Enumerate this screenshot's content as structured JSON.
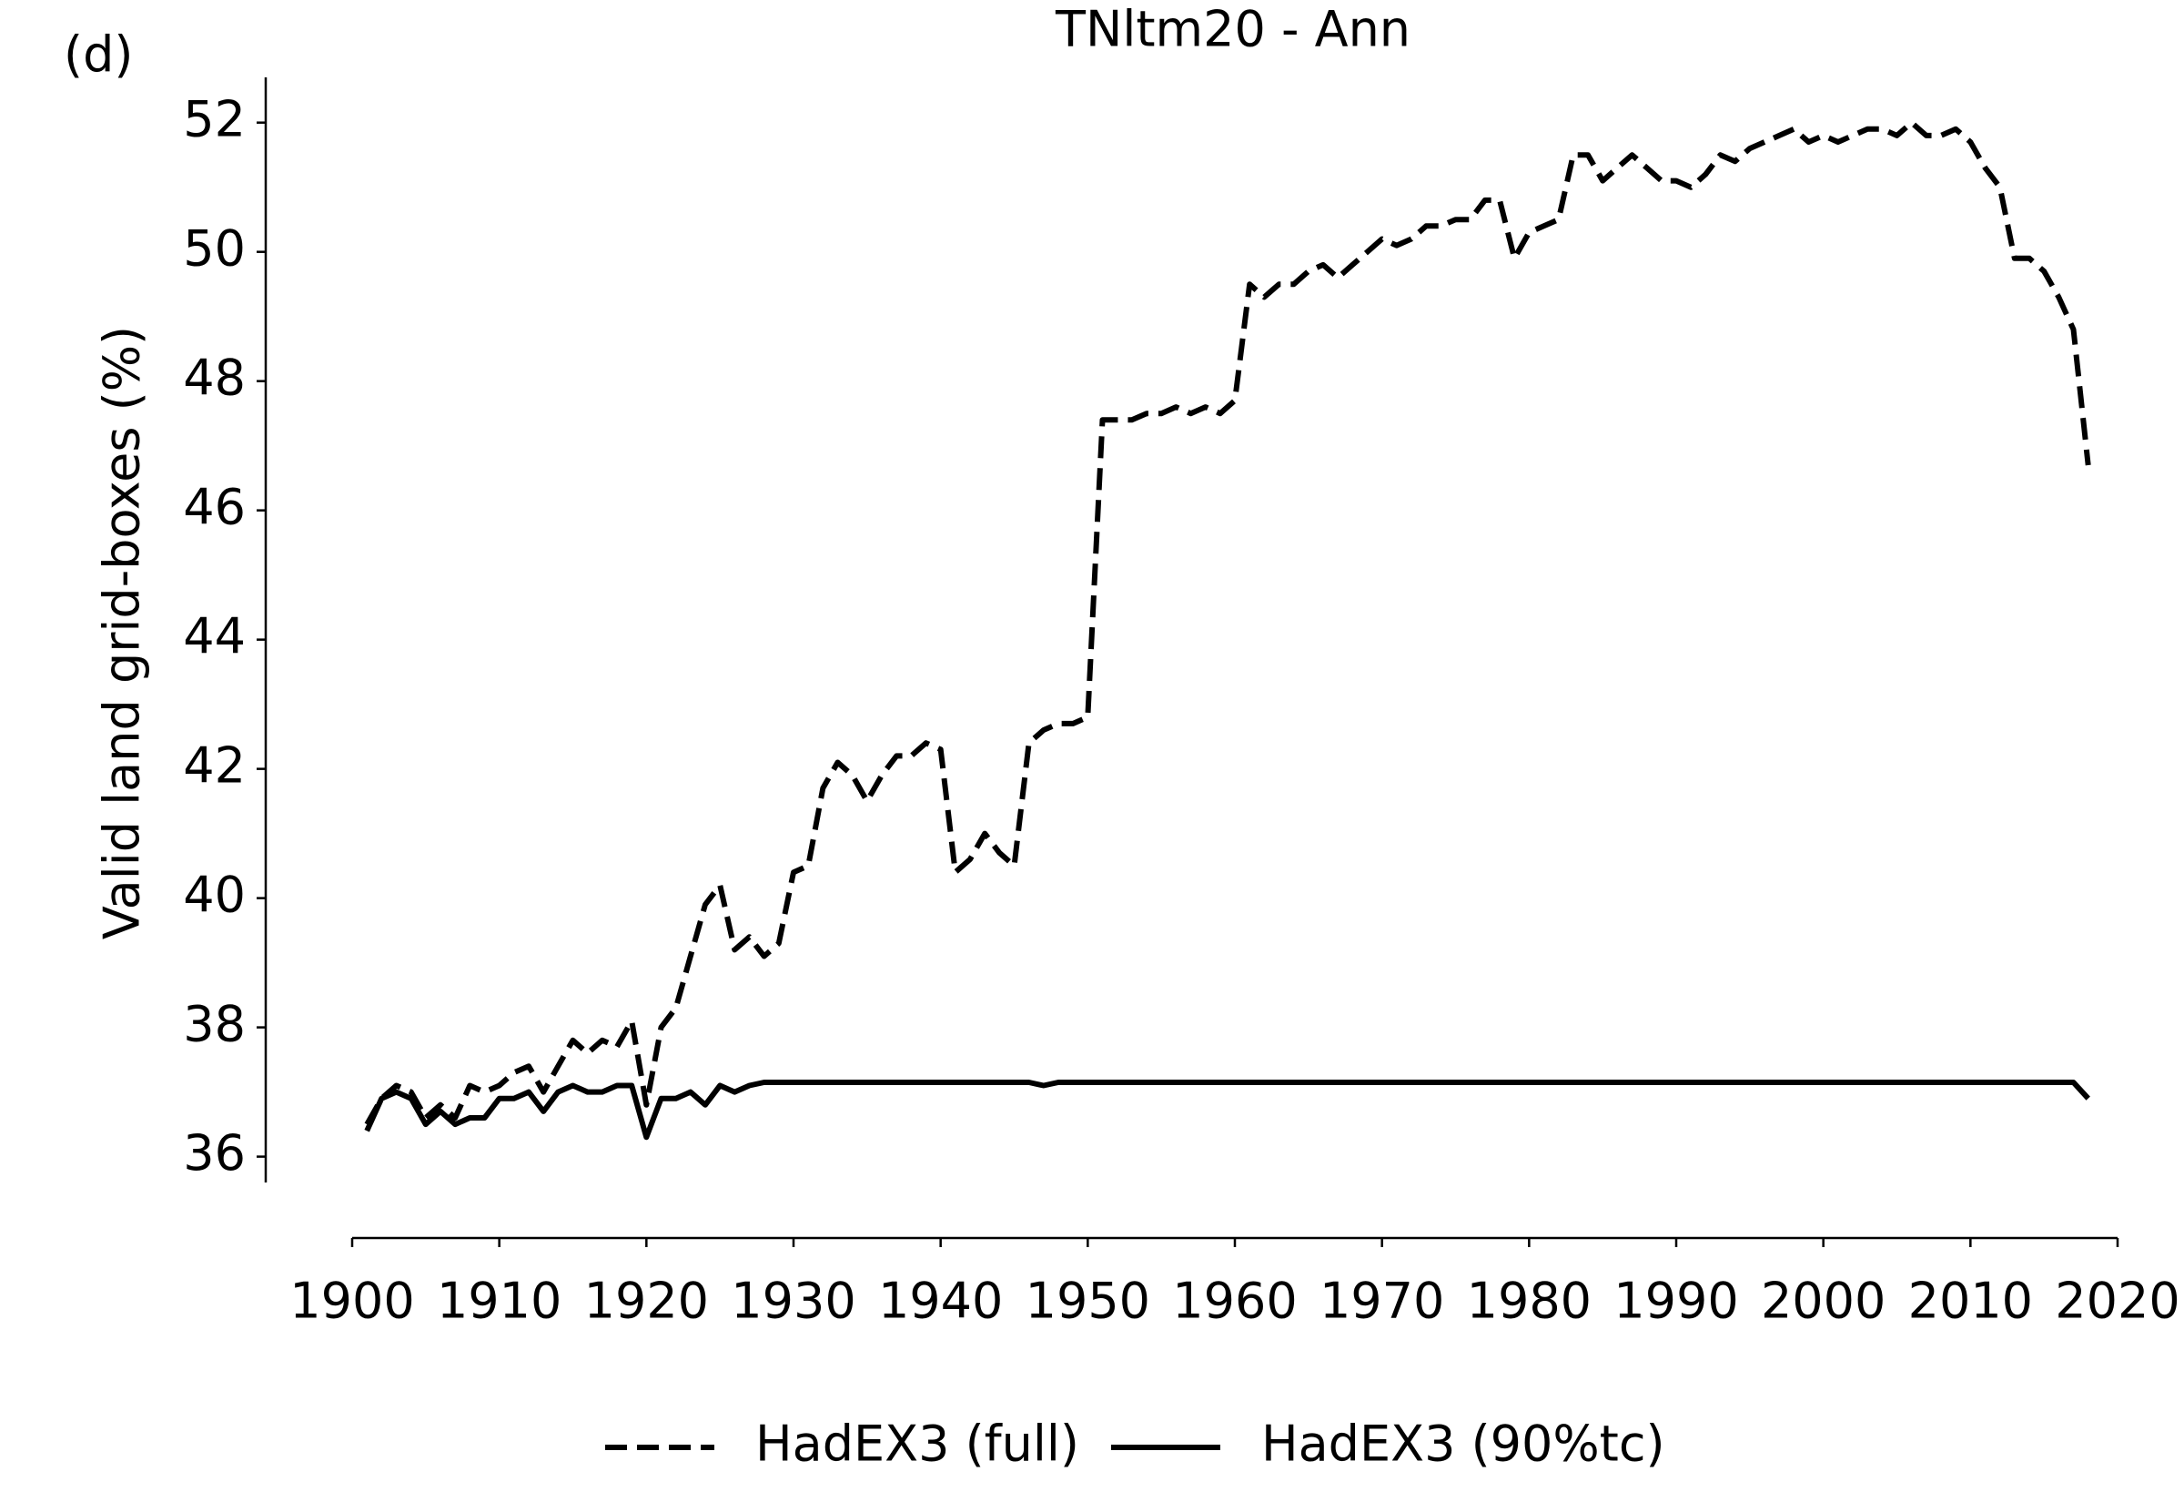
{
  "chart_data": {
    "type": "line",
    "title": "TNltm20 - Ann",
    "panel_label": "(d)",
    "ylabel": "Valid land grid-boxes (%)",
    "legend": "bottom",
    "x": [
      1901,
      1902,
      1903,
      1904,
      1905,
      1906,
      1907,
      1908,
      1909,
      1910,
      1911,
      1912,
      1913,
      1914,
      1915,
      1916,
      1917,
      1918,
      1919,
      1920,
      1921,
      1922,
      1923,
      1924,
      1925,
      1926,
      1927,
      1928,
      1929,
      1930,
      1931,
      1932,
      1933,
      1934,
      1935,
      1936,
      1937,
      1938,
      1939,
      1940,
      1941,
      1942,
      1943,
      1944,
      1945,
      1946,
      1947,
      1948,
      1949,
      1950,
      1951,
      1952,
      1953,
      1954,
      1955,
      1956,
      1957,
      1958,
      1959,
      1960,
      1961,
      1962,
      1963,
      1964,
      1965,
      1966,
      1967,
      1968,
      1969,
      1970,
      1971,
      1972,
      1973,
      1974,
      1975,
      1976,
      1977,
      1978,
      1979,
      1980,
      1981,
      1982,
      1983,
      1984,
      1985,
      1986,
      1987,
      1988,
      1989,
      1990,
      1991,
      1992,
      1993,
      1994,
      1995,
      1996,
      1997,
      1998,
      1999,
      2000,
      2001,
      2002,
      2003,
      2004,
      2005,
      2006,
      2007,
      2008,
      2009,
      2010,
      2011,
      2012,
      2013,
      2014,
      2015,
      2016,
      2017,
      2018
    ],
    "series": [
      {
        "name": "HadEX3 (full)",
        "color": "#000000",
        "dash": true,
        "values": [
          36.5,
          36.9,
          37.1,
          37.0,
          36.6,
          36.8,
          36.6,
          37.1,
          37.0,
          37.1,
          37.3,
          37.4,
          37.0,
          37.4,
          37.8,
          37.6,
          37.8,
          37.7,
          38.1,
          36.8,
          38.0,
          38.3,
          39.1,
          39.9,
          40.2,
          39.2,
          39.4,
          39.1,
          39.3,
          40.4,
          40.5,
          41.7,
          42.1,
          41.9,
          41.5,
          41.9,
          42.2,
          42.2,
          42.4,
          42.3,
          40.4,
          40.6,
          41.0,
          40.7,
          40.5,
          42.4,
          42.6,
          42.7,
          42.7,
          42.8,
          47.4,
          47.4,
          47.4,
          47.5,
          47.5,
          47.6,
          47.5,
          47.6,
          47.5,
          47.7,
          49.5,
          49.3,
          49.5,
          49.5,
          49.7,
          49.8,
          49.6,
          49.8,
          50.0,
          50.2,
          50.1,
          50.2,
          50.4,
          50.4,
          50.5,
          50.5,
          50.8,
          50.8,
          49.9,
          50.3,
          50.4,
          50.5,
          51.5,
          51.5,
          51.1,
          51.3,
          51.5,
          51.3,
          51.1,
          51.1,
          51.0,
          51.2,
          51.5,
          51.4,
          51.6,
          51.7,
          51.8,
          51.9,
          51.7,
          51.8,
          51.7,
          51.8,
          51.9,
          51.9,
          51.8,
          52.0,
          51.8,
          51.8,
          51.9,
          51.7,
          51.3,
          51.0,
          49.9,
          49.9,
          49.7,
          49.3,
          48.8,
          46.7
        ]
      },
      {
        "name": "HadEX3 (90%tc)",
        "color": "#000000",
        "dash": false,
        "values": [
          36.4,
          36.9,
          37.0,
          36.9,
          36.5,
          36.7,
          36.5,
          36.6,
          36.6,
          36.9,
          36.9,
          37.0,
          36.7,
          37.0,
          37.1,
          37.0,
          37.0,
          37.1,
          37.1,
          36.3,
          36.9,
          36.9,
          37.0,
          36.8,
          37.1,
          37.0,
          37.1,
          37.15,
          37.15,
          37.15,
          37.15,
          37.15,
          37.15,
          37.15,
          37.15,
          37.15,
          37.15,
          37.15,
          37.15,
          37.15,
          37.15,
          37.15,
          37.15,
          37.15,
          37.15,
          37.15,
          37.1,
          37.15,
          37.15,
          37.15,
          37.15,
          37.15,
          37.15,
          37.15,
          37.15,
          37.15,
          37.15,
          37.15,
          37.15,
          37.15,
          37.15,
          37.15,
          37.15,
          37.15,
          37.15,
          37.15,
          37.15,
          37.15,
          37.15,
          37.15,
          37.15,
          37.15,
          37.15,
          37.15,
          37.15,
          37.15,
          37.15,
          37.15,
          37.15,
          37.15,
          37.15,
          37.15,
          37.15,
          37.15,
          37.15,
          37.15,
          37.15,
          37.15,
          37.15,
          37.15,
          37.15,
          37.15,
          37.15,
          37.15,
          37.15,
          37.15,
          37.15,
          37.15,
          37.15,
          37.15,
          37.15,
          37.15,
          37.15,
          37.15,
          37.15,
          37.15,
          37.15,
          37.15,
          37.15,
          37.15,
          37.15,
          37.15,
          37.15,
          37.15,
          37.15,
          37.15,
          37.15,
          36.9
        ]
      }
    ],
    "xlim": [
      1900,
      2020
    ],
    "xticks": [
      1900,
      1910,
      1920,
      1930,
      1940,
      1950,
      1960,
      1970,
      1980,
      1990,
      2000,
      2010,
      2020
    ],
    "ylim": [
      35.6,
      52.7
    ],
    "yticks": [
      36,
      38,
      40,
      42,
      44,
      46,
      48,
      50,
      52
    ]
  }
}
